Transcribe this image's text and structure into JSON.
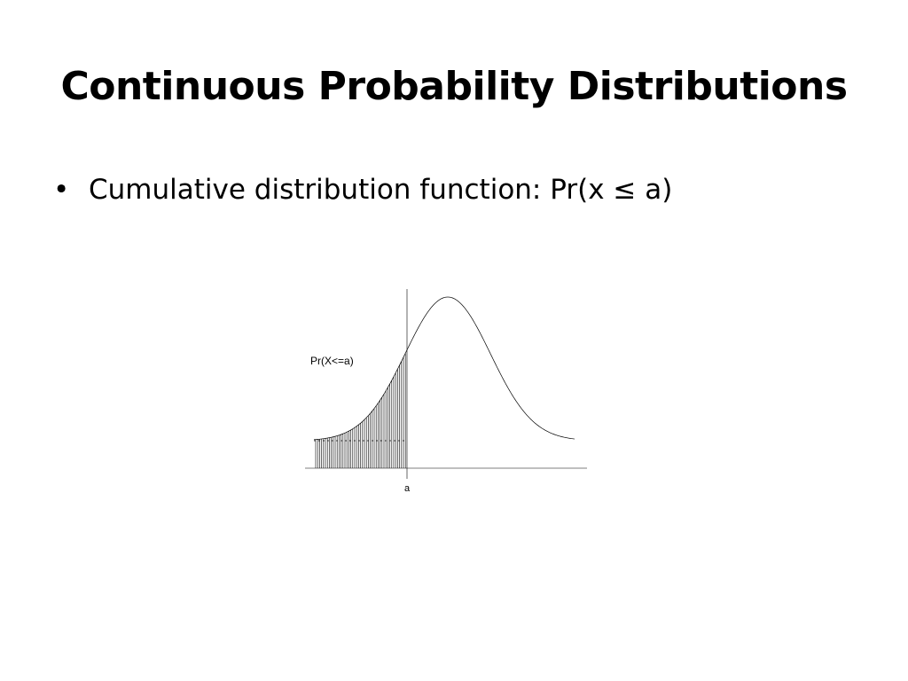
{
  "slide": {
    "title": "Continuous Probability Distributions",
    "bullets": [
      {
        "marker": "•",
        "text": "Cumulative distribution function: Pr(x ≤ a)"
      }
    ]
  },
  "figure": {
    "annotation_label": "Pr(X<=a)",
    "x_tick_label": "a",
    "curve": "bell-shaped density curve",
    "shaded_region": "area under the curve left of a, drawn with vertical hatch lines"
  }
}
